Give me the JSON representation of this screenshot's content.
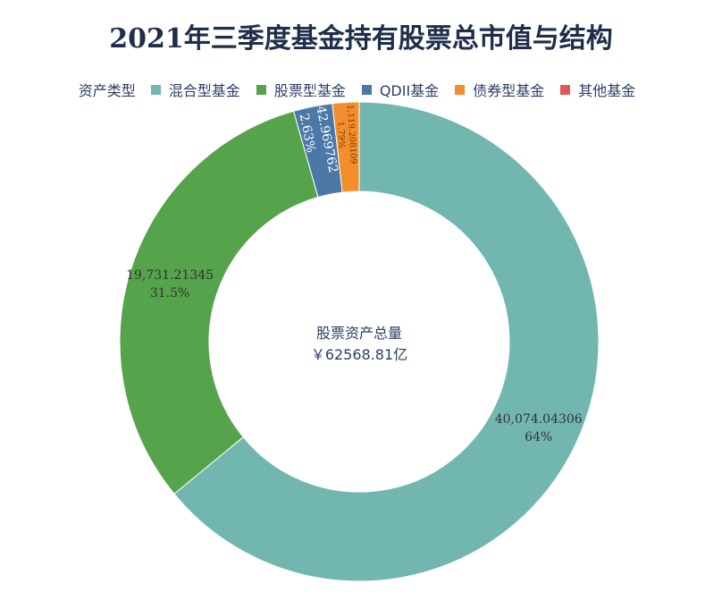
{
  "chart_data": {
    "type": "pie",
    "donut": true,
    "title": "2021年三季度基金持有股票总市值与结构",
    "legend_title": "资产类型",
    "legend_position": "top",
    "center_label": "股票资产总量",
    "center_value": "￥62568.81亿",
    "slices": [
      {
        "name": "混合型基金",
        "value": 40074.04306,
        "value_label": "40,074.04306",
        "percent_label": "64%",
        "color": "#72b6b0"
      },
      {
        "name": "股票型基金",
        "value": 19731.21345,
        "value_label": "19,731.21345",
        "percent_label": "31.5%",
        "color": "#55a34a"
      },
      {
        "name": "QDII基金",
        "value": 1642.969762,
        "value_label": "1,642.969762",
        "percent_label": "2.63%",
        "color": "#4c78a8"
      },
      {
        "name": "债券型基金",
        "value": 1119.208109,
        "value_label": "1,119.208109",
        "percent_label": "1.79%",
        "color": "#f28e2b"
      },
      {
        "name": "其他基金",
        "value": 1.38,
        "value_label": "",
        "percent_label": "",
        "color": "#e15759"
      }
    ]
  }
}
